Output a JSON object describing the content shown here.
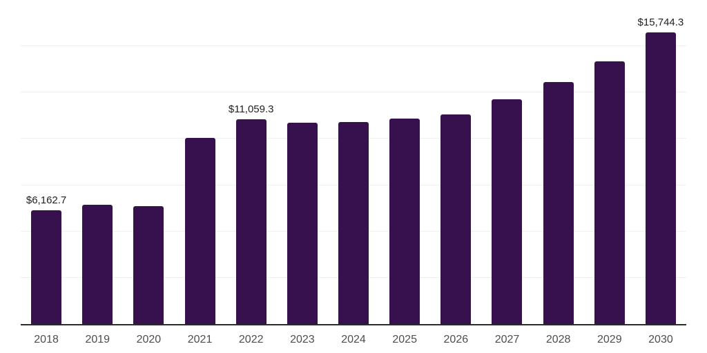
{
  "chart_data": {
    "type": "bar",
    "title": "",
    "xlabel": "",
    "ylabel": "",
    "categories": [
      "2018",
      "2019",
      "2020",
      "2021",
      "2022",
      "2023",
      "2024",
      "2025",
      "2026",
      "2027",
      "2028",
      "2029",
      "2030"
    ],
    "values": [
      6162.7,
      6440,
      6360,
      10040,
      11059.3,
      10870,
      10920,
      11080,
      11310,
      12130,
      13070,
      14190,
      15744.3
    ],
    "labeled_values": {
      "2018": "$6,162.7",
      "2022": "$11,059.3",
      "2030": "$15,744.3"
    },
    "ylim": [
      0,
      17500
    ],
    "gridline_interval": 2500,
    "grid": "horizontal-only",
    "legend": "none",
    "bar_color": "#36114D",
    "background_color": "#ffffff",
    "gridline_color": "#f0f0f0",
    "axis_line_color": "#2b2b2b",
    "x_label_color": "#4d4d4d",
    "value_label_color": "#212121"
  }
}
